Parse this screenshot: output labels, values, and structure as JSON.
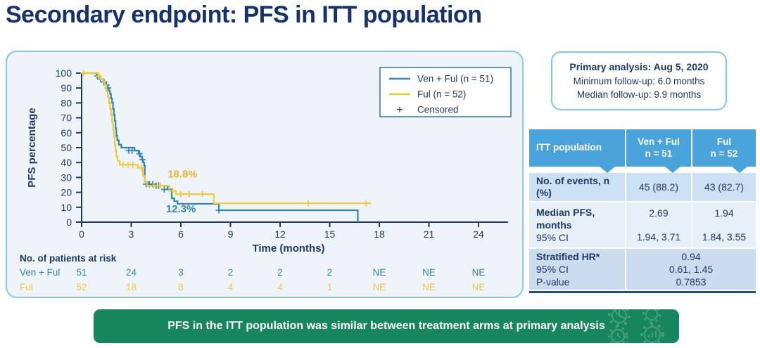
{
  "title": "Secondary endpoint: PFS in ITT population",
  "analysis_box": {
    "line1": "Primary analysis: Aug 5, 2020",
    "line2": "Minimum follow-up: 6.0 months",
    "line3": "Median follow-up: 9.9 months"
  },
  "chart_data": {
    "type": "line",
    "subtype": "kaplan-meier-step",
    "xlabel": "Time (months)",
    "ylabel": "PFS percentage",
    "xlim": [
      0,
      24.6
    ],
    "ylim": [
      0,
      100
    ],
    "xticks": [
      0,
      3,
      6,
      9,
      12,
      15,
      18,
      21,
      24
    ],
    "yticks": [
      0,
      10,
      20,
      30,
      40,
      50,
      60,
      70,
      80,
      90,
      100
    ],
    "grid": "off",
    "legend_position": "upper right inside",
    "legend": [
      {
        "label": "Ven + Ful (n = 51)",
        "type": "line",
        "color": "#2F86B0"
      },
      {
        "label": "Ful (n = 52)",
        "type": "line",
        "color": "#F0C93F"
      },
      {
        "label": "Censored",
        "type": "plus",
        "color": "#222222"
      }
    ],
    "series": [
      {
        "id": "ven-ful",
        "name": "Ven + Ful (n = 51)",
        "color": "#2F86B0",
        "steps": [
          [
            0,
            100
          ],
          [
            0.9,
            98
          ],
          [
            1.1,
            96
          ],
          [
            1.3,
            94
          ],
          [
            1.45,
            92
          ],
          [
            1.55,
            90
          ],
          [
            1.65,
            88
          ],
          [
            1.72,
            86
          ],
          [
            1.78,
            83
          ],
          [
            1.84,
            80
          ],
          [
            1.9,
            76
          ],
          [
            1.95,
            72
          ],
          [
            2.0,
            68
          ],
          [
            2.05,
            63
          ],
          [
            2.1,
            58
          ],
          [
            2.15,
            55
          ],
          [
            2.25,
            52
          ],
          [
            2.4,
            50
          ],
          [
            3.2,
            48
          ],
          [
            3.45,
            46
          ],
          [
            3.55,
            44
          ],
          [
            3.65,
            42
          ],
          [
            3.72,
            40
          ],
          [
            3.78,
            38
          ],
          [
            3.82,
            27
          ],
          [
            4.0,
            25.5
          ],
          [
            4.35,
            24.5
          ],
          [
            5.2,
            22
          ],
          [
            5.45,
            16
          ],
          [
            5.6,
            14
          ],
          [
            5.8,
            12.3
          ],
          [
            8.3,
            8
          ],
          [
            16.7,
            8
          ],
          [
            16.7,
            0
          ]
        ],
        "censors": [
          [
            0.95,
            98
          ],
          [
            1.15,
            96
          ],
          [
            1.35,
            94
          ],
          [
            1.5,
            92
          ],
          [
            1.6,
            90
          ],
          [
            2.85,
            48
          ],
          [
            3.05,
            48
          ],
          [
            3.5,
            46
          ],
          [
            3.68,
            42
          ],
          [
            3.9,
            25.5
          ],
          [
            4.1,
            25.5
          ],
          [
            4.3,
            25.5
          ],
          [
            4.5,
            24.5
          ],
          [
            4.65,
            24.5
          ],
          [
            5.0,
            22
          ],
          [
            8.3,
            8
          ]
        ]
      },
      {
        "id": "ful",
        "name": "Ful (n = 52)",
        "color": "#F0C93F",
        "steps": [
          [
            0,
            100
          ],
          [
            1.0,
            98
          ],
          [
            1.15,
            96
          ],
          [
            1.3,
            94
          ],
          [
            1.4,
            92
          ],
          [
            1.5,
            88
          ],
          [
            1.58,
            84
          ],
          [
            1.65,
            80
          ],
          [
            1.72,
            76
          ],
          [
            1.78,
            72
          ],
          [
            1.84,
            67
          ],
          [
            1.9,
            62
          ],
          [
            1.95,
            57
          ],
          [
            2.0,
            52
          ],
          [
            2.05,
            48
          ],
          [
            2.1,
            44
          ],
          [
            2.18,
            41
          ],
          [
            2.3,
            38.5
          ],
          [
            3.4,
            36.5
          ],
          [
            3.7,
            31
          ],
          [
            3.82,
            27
          ],
          [
            3.95,
            24.5
          ],
          [
            5.3,
            21
          ],
          [
            5.7,
            18.8
          ],
          [
            8.0,
            12.7
          ],
          [
            17.5,
            12.7
          ]
        ],
        "censors": [
          [
            0.12,
            100
          ],
          [
            1.05,
            98
          ],
          [
            2.5,
            38.5
          ],
          [
            2.8,
            38.5
          ],
          [
            3.1,
            38.5
          ],
          [
            3.6,
            36.5
          ],
          [
            4.35,
            24.5
          ],
          [
            4.75,
            24.5
          ],
          [
            5.5,
            21
          ],
          [
            6.0,
            18.8
          ],
          [
            6.5,
            18.8
          ],
          [
            7.3,
            18.8
          ],
          [
            13.7,
            12.7
          ],
          [
            17.2,
            12.7
          ]
        ]
      }
    ],
    "annotations": [
      {
        "text": "18.8%",
        "x": 5.2,
        "y": 30,
        "color": "#E9B32B"
      },
      {
        "text": "12.3%",
        "x": 5.1,
        "y": 6.5,
        "color": "#2F86B0"
      }
    ],
    "risk_table": {
      "title": "No. of patients at risk",
      "times": [
        0,
        3,
        6,
        9,
        12,
        15,
        18,
        21,
        24
      ],
      "rows": [
        {
          "label": "Ven + Ful",
          "color": "#2F86B0",
          "values": [
            "51",
            "24",
            "3",
            "2",
            "2",
            "2",
            "NE",
            "NE",
            "NE"
          ]
        },
        {
          "label": "Ful",
          "color": "#F0C93F",
          "values": [
            "52",
            "18",
            "8",
            "4",
            "4",
            "1",
            "NE",
            "NE",
            "NE"
          ]
        }
      ]
    }
  },
  "itt_table": {
    "header": {
      "col1": "ITT population",
      "col2_line1": "Ven + Ful",
      "col2_line2": "n = 51",
      "col3_line1": "Ful",
      "col3_line2": "n = 52"
    },
    "rows": {
      "events": {
        "label": "No. of events, n (%)",
        "ven_ful": "45 (88.2)",
        "ful": "43 (82.7)"
      },
      "median_pfs": {
        "label_line1": "Median PFS,",
        "label_line2": "months",
        "label_line3": "95% CI",
        "ven_ful_value": "2.69",
        "ven_ful_ci": "1.94, 3.71",
        "ful_value": "1.94",
        "ful_ci": "1.84, 3.55"
      },
      "hr": {
        "label_line1": "Stratified HR*",
        "label_line2": "95% CI",
        "label_line3": "P-value",
        "value": "0.94",
        "ci": "0.61, 1.45",
        "p": "0.7853"
      }
    }
  },
  "banner": {
    "text": "PFS in the ITT population was similar between treatment arms at primary analysis"
  },
  "colors": {
    "title_navy": "#15316E",
    "text_navy": "#1F3864",
    "curve_blue": "#2F86B0",
    "curve_yellow": "#F0C93F",
    "annotation_gold": "#E9B32B",
    "table_header_blue": "#4BA3DC",
    "row_light": "#CBE1F3",
    "row_lighter": "#E7F0F9",
    "row_mid": "#CBDCEE",
    "table_bottom_navy": "#1F4E79",
    "panel_bg": "#EFF4FA",
    "panel_border": "#86C7EA",
    "legend_border": "#2E75B6",
    "analysis_border": "#7FC6EF",
    "banner_green": "#17865F",
    "gear_green": "#4DA283"
  }
}
